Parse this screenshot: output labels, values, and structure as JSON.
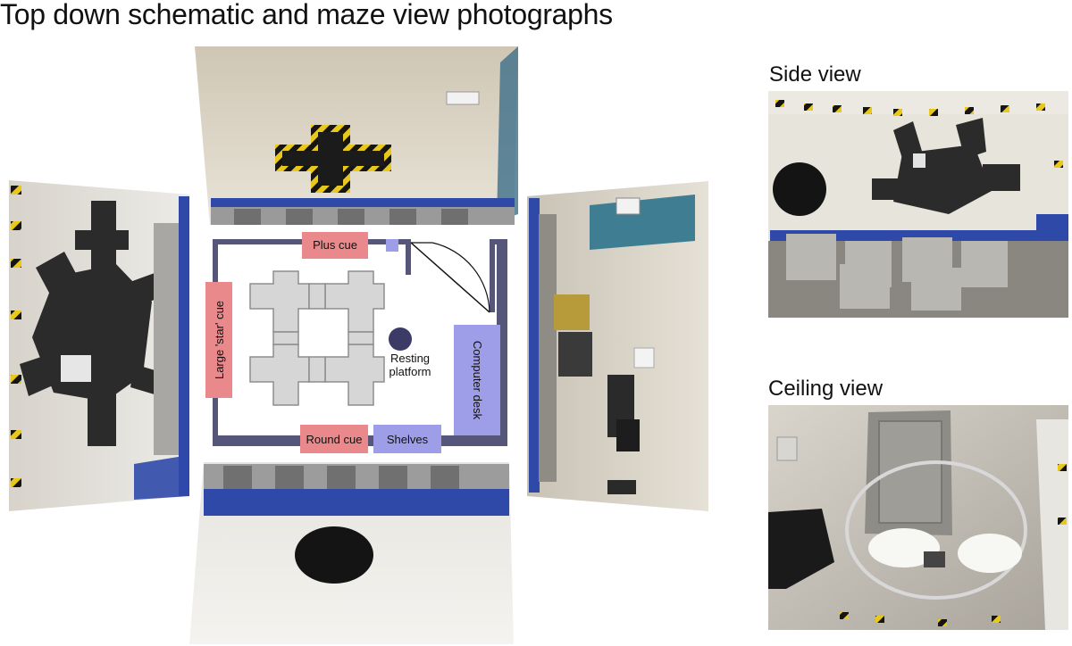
{
  "title": "Top down schematic and maze view photographs",
  "side_view_label": "Side view",
  "ceiling_view_label": "Ceiling view",
  "schematic": {
    "plus_cue": "Plus cue",
    "star_cue": "Large 'star' cue",
    "round_cue": "Round cue",
    "shelves": "Shelves",
    "computer_desk": "Computer desk",
    "resting_platform_line1": "Resting",
    "resting_platform_line2": "platform"
  },
  "colors": {
    "cue_pink": "#e9898b",
    "furniture_lavender": "#9e9de8",
    "wall_navy": "#56567a",
    "maze_grey": "#d6d6d6",
    "platform_navy": "#3b3b66"
  }
}
